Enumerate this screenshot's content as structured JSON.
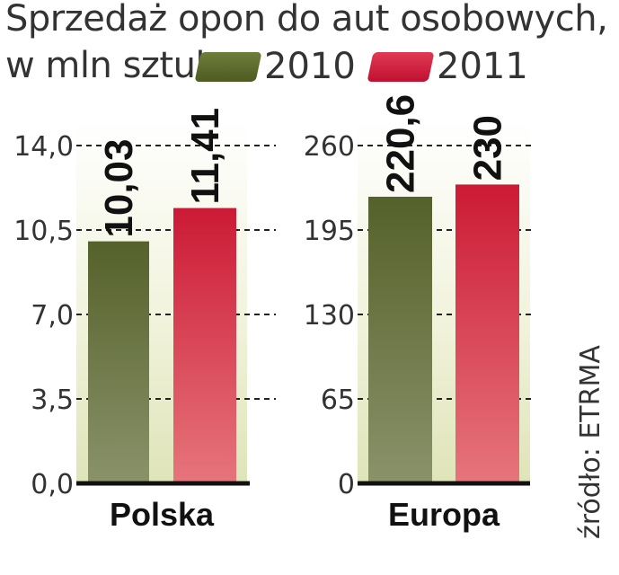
{
  "title": {
    "line1": "Sprzedaż opon do aut osobowych,",
    "line2": "w mln sztuk"
  },
  "legend": [
    {
      "label": "2010",
      "color": "#5c6b2a"
    },
    {
      "label": "2011",
      "color": "#cc1f3a"
    }
  ],
  "source": "źródło: ETRMA",
  "chart_data": [
    {
      "type": "bar",
      "categories": [
        "Polska"
      ],
      "xlabel": "Polska",
      "ylim": [
        0,
        14.0
      ],
      "yticks": [
        "14,0",
        "10,5",
        "7,0",
        "3,5",
        "0,0"
      ],
      "ytick_values": [
        14.0,
        10.5,
        7.0,
        3.5,
        0.0
      ],
      "grid": true,
      "series": [
        {
          "name": "2010",
          "values": [
            10.03
          ],
          "label": "10,03"
        },
        {
          "name": "2011",
          "values": [
            11.41
          ],
          "label": "11,41"
        }
      ]
    },
    {
      "type": "bar",
      "categories": [
        "Europa"
      ],
      "xlabel": "Europa",
      "ylim": [
        0,
        260
      ],
      "yticks": [
        "260",
        "195",
        "130",
        "65",
        "0"
      ],
      "ytick_values": [
        260,
        195,
        130,
        65,
        0
      ],
      "grid": true,
      "series": [
        {
          "name": "2010",
          "values": [
            220.6
          ],
          "label": "220,6"
        },
        {
          "name": "2011",
          "values": [
            230
          ],
          "label": "230"
        }
      ]
    }
  ]
}
